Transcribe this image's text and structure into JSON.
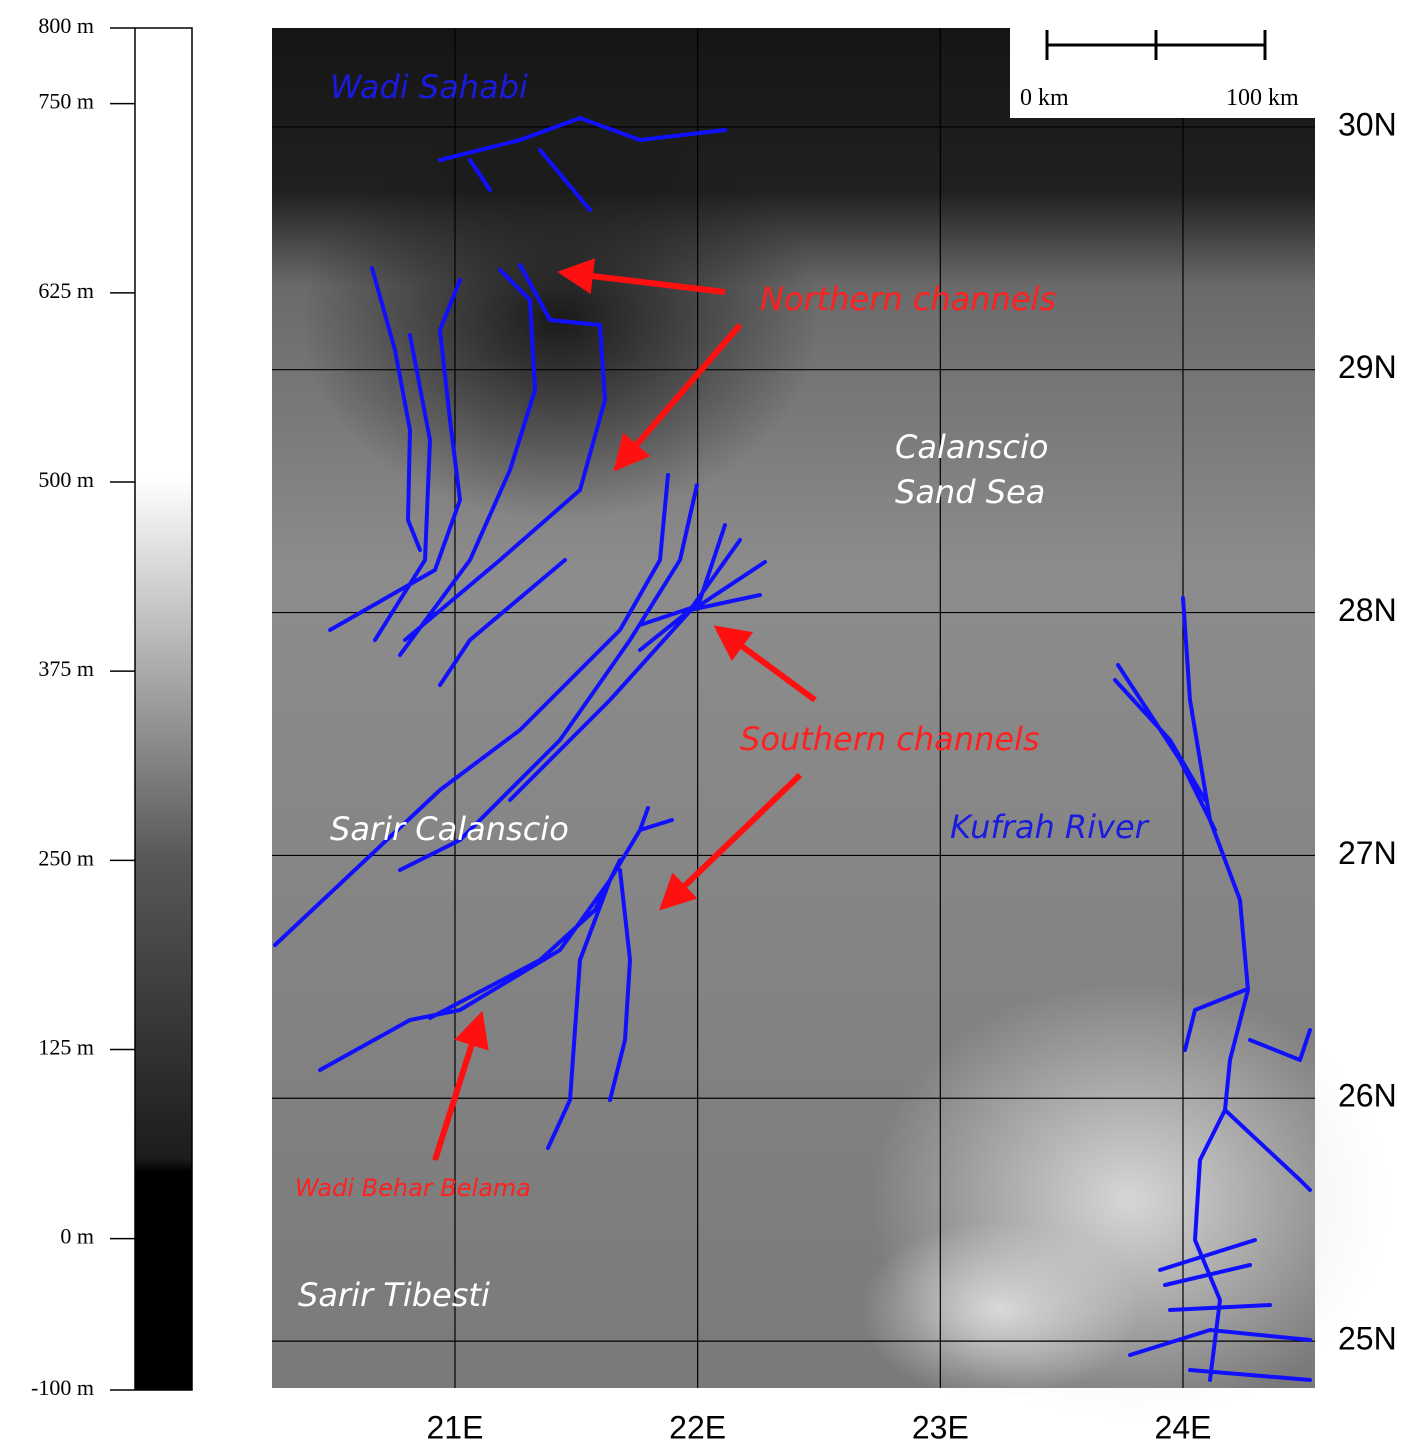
{
  "map": {
    "elevation_legend": {
      "range": [
        -100,
        800
      ],
      "ticks": [
        {
          "value": 800,
          "label": "800 m"
        },
        {
          "value": 750,
          "label": "750 m"
        },
        {
          "value": 625,
          "label": "625 m"
        },
        {
          "value": 500,
          "label": "500 m"
        },
        {
          "value": 375,
          "label": "375 m"
        },
        {
          "value": 250,
          "label": "250 m"
        },
        {
          "value": 125,
          "label": "125 m"
        },
        {
          "value": 0,
          "label": "0 m"
        },
        {
          "value": -100,
          "label": "-100 m"
        }
      ]
    },
    "xlim": [
      20.246,
      24.544
    ],
    "ylim": [
      24.807,
      30.407
    ],
    "xticks": [
      {
        "value": 21,
        "label": "21E"
      },
      {
        "value": 22,
        "label": "22E"
      },
      {
        "value": 23,
        "label": "23E"
      },
      {
        "value": 24,
        "label": "24E"
      }
    ],
    "yticks": [
      {
        "value": 30,
        "label": "30N"
      },
      {
        "value": 29,
        "label": "29N"
      },
      {
        "value": 28,
        "label": "28N"
      },
      {
        "value": 27,
        "label": "27N"
      },
      {
        "value": 26,
        "label": "26N"
      },
      {
        "value": 25,
        "label": "25N"
      }
    ],
    "scale_bar": {
      "start_label": "0 km",
      "end_label": "100 km"
    },
    "annotations": {
      "wadi_sahabi": "Wadi Sahabi",
      "northern_channels": "Northern channels",
      "calanscio_sand_sea": [
        "Calanscio",
        "Sand Sea"
      ],
      "southern_channels": "Southern channels",
      "sarir_calanscio": "Sarir Calanscio",
      "kufrah_river": "Kufrah River",
      "wadi_behar_belama": "Wadi Behar Belama",
      "sarir_tibesti": "Sarir Tibesti"
    }
  }
}
